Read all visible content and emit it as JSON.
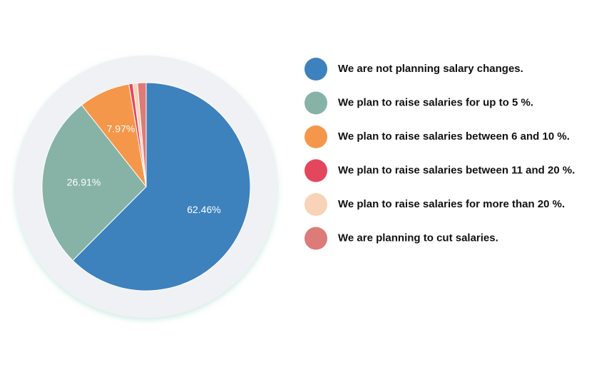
{
  "chart_data": {
    "type": "pie",
    "categories": [
      "We are not planning salary changes.",
      "We plan to raise salaries for up to 5 %.",
      "We plan to raise salaries between 6 and 10 %.",
      "We plan to raise salaries between 11 and 20 %.",
      "We plan to raise salaries for more than 20 %.",
      "We are planning to cut salaries."
    ],
    "values": [
      62.46,
      26.91,
      7.97,
      0.6,
      0.73,
      1.33
    ],
    "value_labels": [
      "62.46%",
      "26.91%",
      "7.97%",
      null,
      null,
      null
    ],
    "colors": [
      "#3d81bd",
      "#86b3a6",
      "#f5974a",
      "#e4475d",
      "#f8d3b7",
      "#dd7b78"
    ],
    "legend": "right"
  }
}
